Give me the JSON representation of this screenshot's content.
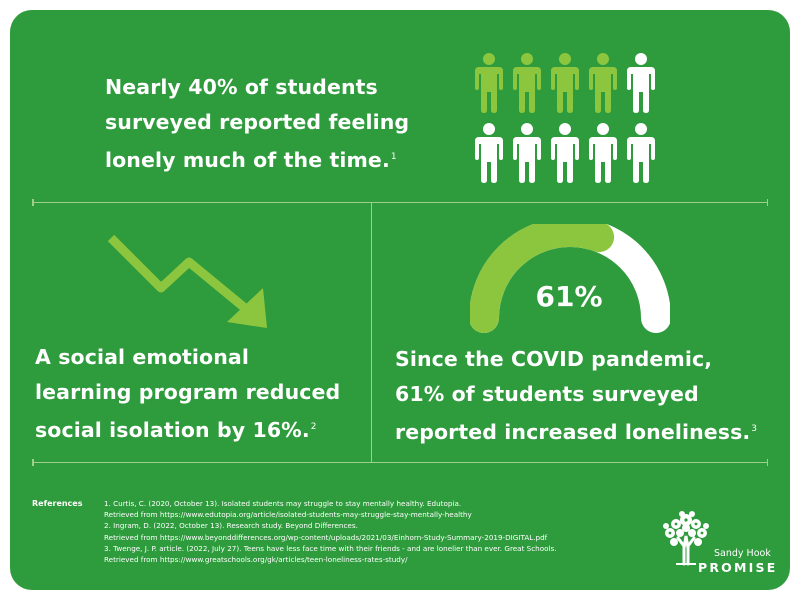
{
  "stat1": {
    "lines": [
      "Nearly 40% of students",
      "surveyed reported feeling",
      "lonely much of the time."
    ],
    "ref": "1"
  },
  "stat2": {
    "lines": [
      "A social emotional",
      "learning program reduced",
      "social isolation by 16%."
    ],
    "ref": "2"
  },
  "stat3": {
    "gauge_percent": 61,
    "gauge_label": "61%",
    "lines": [
      "Since the COVID pandemic,",
      "61% of students surveyed",
      "reported increased loneliness."
    ],
    "ref": "3"
  },
  "people_icons": {
    "total": 10,
    "highlighted": 4
  },
  "references": {
    "title": "References",
    "lines": [
      "1. Curtis, C. (2020, October 13). Isolated students may struggle to stay mentally healthy. Edutopia.",
      "Retrieved from https://www.edutopia.org/article/isolated-students-may-struggle-stay-mentally-healthy",
      "2. Ingram, D. (2022, October 13). Research study. Beyond Differences.",
      "Retrieved from https://www.beyonddifferences.org/wp-content/uploads/2021/03/Einhorn-Study-Summary-2019-DIGITAL.pdf",
      "3. Twenge, J. P. article. (2022, July 27). Teens have less face time with their friends - and are lonelier than ever. Great Schools.",
      "Retrieved from https://www.greatschools.org/gk/articles/teen-loneliness-rates-study/"
    ]
  },
  "logo": {
    "line1": "Sandy Hook",
    "line2": "PROMISE"
  },
  "colors": {
    "background": "#2e9b3c",
    "accent_green": "#8cc63f",
    "text": "#ffffff",
    "divider": "#9ed08c"
  }
}
